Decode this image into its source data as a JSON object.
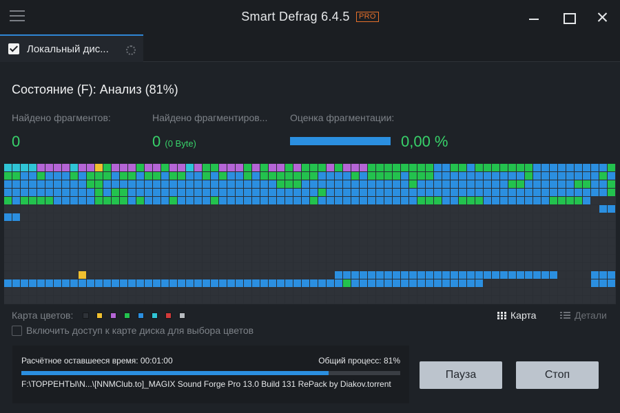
{
  "window": {
    "title": "Smart Defrag 6.4.5",
    "badge": "PRO"
  },
  "tab": {
    "label": "Локальный дис..."
  },
  "status": {
    "text": "Состояние (F): Анализ (81%)"
  },
  "stats": {
    "fragments_label": "Найдено фрагментов:",
    "fragments_value": "0",
    "fragmented_label": "Найдено фрагментиров...",
    "fragmented_value": "0",
    "fragmented_size": "(0 Byte)",
    "score_label": "Оценка фрагментации:",
    "score_value": "0,00 %"
  },
  "disk_map": {
    "columns": 74,
    "rows": 17,
    "legend": {
      "0": "#2e3238",
      "1": "#2b8fe0",
      "2": "#23c24e",
      "3": "#2fc5d6",
      "4": "#b565d6",
      "5": "#f0c030"
    },
    "cells": [
      "33334444344524442442443422444242442422242444222222221122122222221111111112",
      "22112111212221221221221121211212222222111121222212221111111111121111111121",
      "11111111112211111111111111111111122211111111111112111111111112211111122112",
      "11111111111212211111111111111111111111211111111111111111111111111111111112",
      "21222211111222212111211112111111111112111111111111222112221111111122221000",
      "00000000000000000000000000000000000000000000000000000000000000000000000011",
      "11000000000000000000000000000000000000000000000000000000000000000000000000",
      "00000000000000000000000000000000000000000000000000000000000000000000000000",
      "00000000000000000000000000000000000000000000000000000000000000000000000000",
      "00000000000000000000000000000000000000000000000000000000000000000000000000",
      "00000000000000000000000000000000000000000000000000000000000000000000000000",
      "00000000000000000000000000000000000000000000000000000000000000000000000000",
      "00000000000000000000000000000000000000000000000000000000000000000000000000",
      "00000000050000000000000000000000000000001111111111111111111111111110000111",
      "11111111111111111111111111111111111111111211111111111111110000000000000111",
      "00000000000000000000000000000000000000000000000000000000000000000000000000",
      "00000000000000000000000000000000000000000000000000000000000000000000000000"
    ]
  },
  "legend": {
    "label": "Карта цветов:",
    "colors": [
      "#2e3238",
      "#f0c030",
      "#b565d6",
      "#23c24e",
      "#2b8fe0",
      "#2fc5d6",
      "#d23a3a",
      "#b8bcc0"
    ]
  },
  "view": {
    "map_label": "Карта",
    "details_label": "Детали"
  },
  "checkbox": {
    "label": "Включить доступ к карте диска для выбора цветов"
  },
  "progress": {
    "remaining_label": "Расчётное оставшееся время:",
    "remaining_value": "00:01:00",
    "overall_label": "Общий процесс:",
    "overall_value": "81%",
    "fraction": 0.81,
    "file": "F:\\ТОРРЕНТЫ\\N...\\[NNMClub.to]_MAGIX Sound Forge Pro 13.0 Build 131 RePack by Diakov.torrent"
  },
  "buttons": {
    "pause": "Пауза",
    "stop": "Стоп"
  }
}
